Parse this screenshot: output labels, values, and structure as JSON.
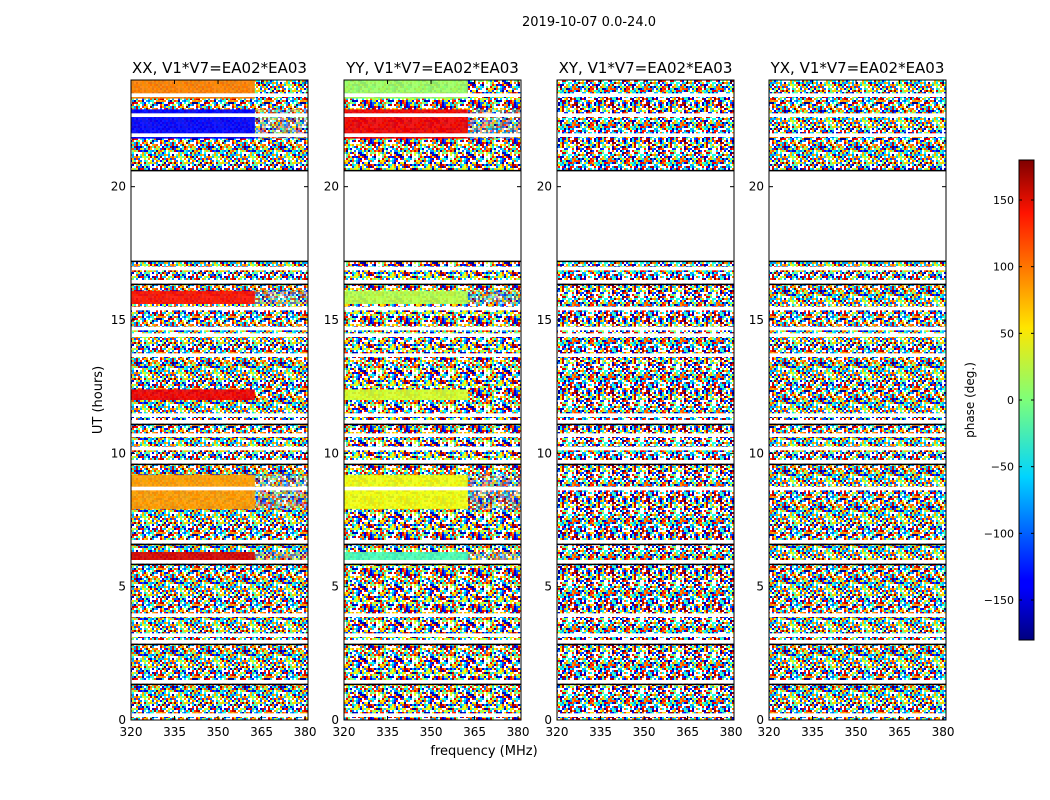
{
  "figure": {
    "suptitle": "2019-10-07 0.0-24.0",
    "ylabel": "UT (hours)",
    "xlabel": "frequency (MHz)"
  },
  "chart_data": {
    "type": "heatmap",
    "title": "2019-10-07 0.0-24.0",
    "xlabel": "frequency (MHz)",
    "ylabel": "UT (hours)",
    "xlim": [
      320,
      381
    ],
    "ylim": [
      0,
      24
    ],
    "xticks": [
      320,
      335,
      350,
      365,
      380
    ],
    "yticks": [
      0,
      5,
      10,
      15,
      20
    ],
    "panels": [
      {
        "title": "XX, V1*V7=EA02*EA03",
        "coherent_bands": [
          {
            "t0": 23.3,
            "t1": 24.0,
            "phase": 90
          },
          {
            "t0": 21.8,
            "t1": 22.9,
            "phase": -135
          },
          {
            "t0": 15.6,
            "t1": 16.1,
            "phase": 130
          },
          {
            "t0": 12.0,
            "t1": 12.4,
            "phase": 140
          },
          {
            "t0": 7.9,
            "t1": 9.2,
            "phase": 80
          },
          {
            "t0": 5.9,
            "t1": 6.3,
            "phase": 150
          }
        ]
      },
      {
        "title": "YY, V1*V7=EA02*EA03",
        "coherent_bands": [
          {
            "t0": 23.3,
            "t1": 24.0,
            "phase": 10
          },
          {
            "t0": 21.8,
            "t1": 22.9,
            "phase": 140
          },
          {
            "t0": 15.6,
            "t1": 16.1,
            "phase": 20
          },
          {
            "t0": 12.0,
            "t1": 12.4,
            "phase": 30
          },
          {
            "t0": 7.9,
            "t1": 9.2,
            "phase": 40
          },
          {
            "t0": 5.9,
            "t1": 6.3,
            "phase": -20
          }
        ]
      },
      {
        "title": "XY, V1*V7=EA02*EA03",
        "coherent_bands": []
      },
      {
        "title": "YX, V1*V7=EA02*EA03",
        "coherent_bands": []
      }
    ],
    "flagged_time_ranges": [
      [
        17.2,
        20.6
      ]
    ],
    "colorbar": {
      "label": "phase (deg.)",
      "range": [
        -180,
        180
      ],
      "ticks": [
        150,
        100,
        50,
        0,
        -50,
        -100,
        -150
      ],
      "tick_labels": [
        "150",
        "100",
        "50",
        "0",
        "−50",
        "−100",
        "−150"
      ]
    }
  }
}
